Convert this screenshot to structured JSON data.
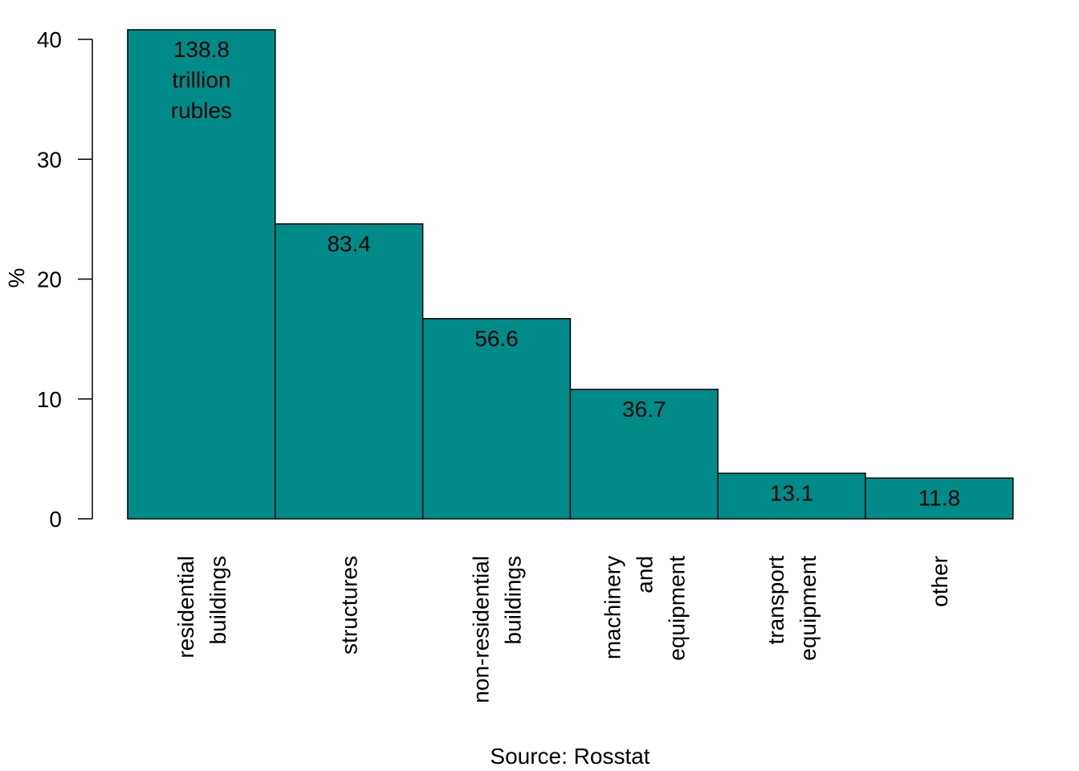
{
  "chart_data": {
    "type": "bar",
    "categories": [
      [
        "residential",
        "buildings"
      ],
      [
        "structures"
      ],
      [
        "non-residential",
        "buildings"
      ],
      [
        "machinery",
        "and",
        "equipment"
      ],
      [
        "transport",
        "equipment"
      ],
      [
        "other"
      ]
    ],
    "values": [
      40.8,
      24.6,
      16.7,
      10.8,
      3.8,
      3.4
    ],
    "bar_labels": [
      [
        "138.8",
        "trillion",
        "rubles"
      ],
      [
        "83.4"
      ],
      [
        "56.6"
      ],
      [
        "36.7"
      ],
      [
        "13.1"
      ],
      [
        "11.8"
      ]
    ],
    "ylabel": "%",
    "ylim": [
      0,
      40
    ],
    "yticks": [
      0,
      10,
      20,
      30,
      40
    ],
    "xlabel": "Source: Rosstat",
    "bar_color": "#008B8B",
    "bar_edge_color": "#000000",
    "grid": false,
    "legend": "none"
  }
}
